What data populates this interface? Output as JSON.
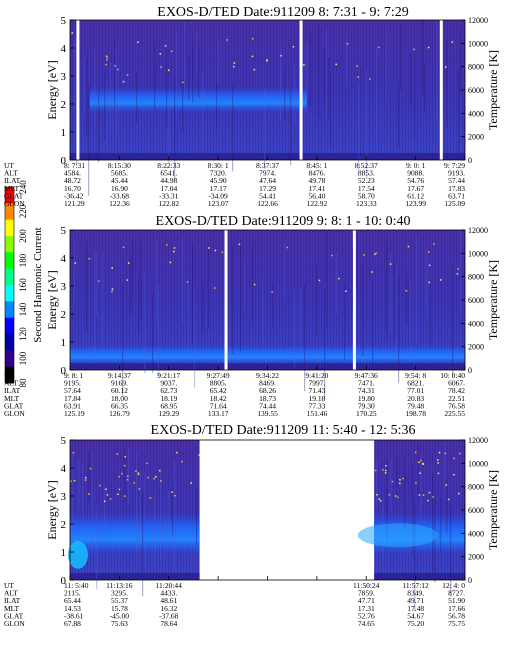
{
  "colorbar": {
    "label": "Second Harmonic Current",
    "ticks": [
      "240",
      "220",
      "200",
      "180",
      "160",
      "140",
      "120",
      "100",
      "80"
    ],
    "colors": [
      "#ff0000",
      "#ff8800",
      "#ffff00",
      "#88ff00",
      "#00ff00",
      "#00ff88",
      "#00ffff",
      "#0088ff",
      "#0000ff",
      "#0000aa",
      "#330088",
      "#000000"
    ]
  },
  "chart_data": [
    {
      "type": "heatmap",
      "title": "EXOS-D/TED   Date:911209  8: 7:31 - 9: 7:29",
      "ylabel": "Energy [eV]",
      "y2label": "Temperature [K]",
      "ylim": [
        0,
        5
      ],
      "y2lim": [
        0,
        12000
      ],
      "yticks": [
        "0",
        "1",
        "2",
        "3",
        "4",
        "5"
      ],
      "y2ticks": [
        "0",
        "2000",
        "4000",
        "6000",
        "8000",
        "10000",
        "12000"
      ],
      "gaps": [
        0.02,
        0.585,
        0.94
      ],
      "band": {
        "from": 0.05,
        "to": 0.6,
        "low": 1.7,
        "high": 2.6
      },
      "rows": [
        {
          "label": "UT",
          "values": [
            "8: 7:31",
            "8:15:30",
            "8:22:33",
            "8:30: 1",
            "8:37:37",
            "8:45: 1",
            "8:52:37",
            "9: 0: 1",
            "9: 7:29"
          ]
        },
        {
          "label": "ALT",
          "values": [
            "4584.",
            "5685.",
            "6541.",
            "7320.",
            "7974.",
            "8476.",
            "8853.",
            "9088.",
            "9193."
          ]
        },
        {
          "label": "ILAT",
          "values": [
            "48.72",
            "45.44",
            "44.98",
            "45.90",
            "47.64",
            "49.78",
            "52.23",
            "54.76",
            "57.44"
          ]
        },
        {
          "label": "MLT",
          "values": [
            "16.70",
            "16.90",
            "17.04",
            "17.17",
            "17.29",
            "17.41",
            "17.54",
            "17.67",
            "17.83"
          ]
        },
        {
          "label": "GLAT",
          "values": [
            "-36.42",
            "-33.68",
            "-33.31",
            "-34.09",
            "54.41",
            "56.40",
            "58.70",
            "61.12",
            "63.71"
          ]
        },
        {
          "label": "GLON",
          "values": [
            "121.29",
            "122.36",
            "122.82",
            "123.07",
            "122.66",
            "122.92",
            "123.33",
            "123.99",
            "125.09"
          ]
        }
      ]
    },
    {
      "type": "heatmap",
      "title": "EXOS-D/TED   Date:911209  9: 8: 1 - 10: 0:40",
      "ylabel": "Energy [eV]",
      "y2label": "Temperature [K]",
      "ylim": [
        0,
        5
      ],
      "y2lim": [
        0,
        12000
      ],
      "yticks": [
        "0",
        "1",
        "2",
        "3",
        "4",
        "5"
      ],
      "y2ticks": [
        "0",
        "2000",
        "4000",
        "6000",
        "8000",
        "10000",
        "12000"
      ],
      "gaps": [
        0.395,
        0.72
      ],
      "band": {
        "from": 0,
        "to": 1,
        "low": 0.2,
        "high": 0.9
      },
      "rows": [
        {
          "label": "UT",
          "values": [
            "9: 8: 1",
            "9:14:37",
            "9:21:17",
            "9:27:49",
            "9:34:22",
            "9:41:20",
            "9:47:36",
            "9:54: 8",
            "10: 0:40"
          ]
        },
        {
          "label": "ALT",
          "values": [
            "9195.",
            "9169.",
            "9037.",
            "8805.",
            "8469.",
            "7997.",
            "7471.",
            "6821.",
            "6067."
          ]
        },
        {
          "label": "ILAT",
          "values": [
            "57.64",
            "60.12",
            "62.73",
            "65.42",
            "68.26",
            "71.43",
            "74.31",
            "77.01",
            "78.42"
          ]
        },
        {
          "label": "MLT",
          "values": [
            "17.84",
            "18.00",
            "18.19",
            "18.42",
            "18.73",
            "19.18",
            "19.80",
            "20.83",
            "22.51"
          ]
        },
        {
          "label": "GLAT",
          "values": [
            "63.91",
            "66.35",
            "68.95",
            "71.64",
            "74.44",
            "77.33",
            "79.30",
            "79.48",
            "76.58"
          ]
        },
        {
          "label": "GLON",
          "values": [
            "125.19",
            "126.79",
            "129.29",
            "133.17",
            "139.55",
            "151.46",
            "170.25",
            "198.78",
            "225.55"
          ]
        }
      ]
    },
    {
      "type": "heatmap",
      "title": "EXOS-D/TED   Date:911209  11: 5:40 - 12: 5:36",
      "ylabel": "Energy [eV]",
      "y2label": "Temperature [K]",
      "ylim": [
        0,
        5
      ],
      "y2lim": [
        0,
        12000
      ],
      "yticks": [
        "0",
        "1",
        "2",
        "3",
        "4",
        "5"
      ],
      "y2ticks": [
        "0",
        "2000",
        "4000",
        "6000",
        "8000",
        "10000",
        "12000"
      ],
      "gaps": [],
      "data_ranges": [
        [
          0,
          0.328
        ],
        [
          0.77,
          1
        ]
      ],
      "band": {
        "from": 0,
        "to": 1,
        "low": 0.9,
        "high": 2.4
      },
      "rows": [
        {
          "label": "UT",
          "values": [
            "11: 5:40",
            "11:13:16",
            "11:20:44",
            "",
            "",
            "",
            "11:50:24",
            "11:57:12",
            "12: 4: 0"
          ]
        },
        {
          "label": "ALT",
          "values": [
            "2115.",
            "3295.",
            "4433.",
            "",
            "",
            "",
            "7859.",
            "8349.",
            "8727."
          ]
        },
        {
          "label": "ILAT",
          "values": [
            "65.44",
            "55.37",
            "48.61",
            "",
            "",
            "",
            "47.71",
            "49.71",
            "51.90"
          ]
        },
        {
          "label": "MLT",
          "values": [
            "14.53",
            "15.78",
            "16.32",
            "",
            "",
            "",
            "17.31",
            "17.48",
            "17.66"
          ]
        },
        {
          "label": "GLAT",
          "values": [
            "-38.61",
            "-45.00",
            "-37.68",
            "",
            "",
            "",
            "52.76",
            "54.67",
            "56.78"
          ]
        },
        {
          "label": "GLON",
          "values": [
            "67.88",
            "75.63",
            "78.64",
            "",
            "",
            "",
            "74.65",
            "75.20",
            "75.75"
          ]
        }
      ]
    }
  ]
}
